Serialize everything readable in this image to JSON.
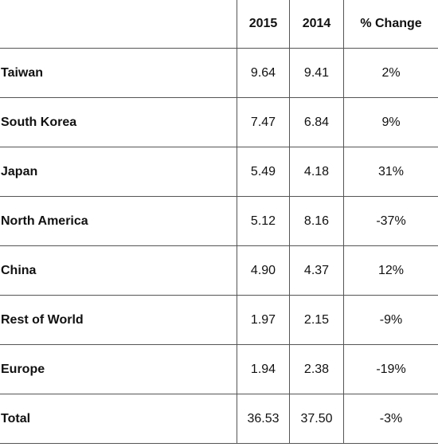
{
  "table": {
    "headers": [
      "",
      "2015",
      "2014",
      "% Change"
    ],
    "rows": [
      {
        "label": "Taiwan",
        "v2015": "9.64",
        "v2014": "9.41",
        "change": "2%"
      },
      {
        "label": "South Korea",
        "v2015": "7.47",
        "v2014": "6.84",
        "change": "9%"
      },
      {
        "label": "Japan",
        "v2015": "5.49",
        "v2014": "4.18",
        "change": "31%"
      },
      {
        "label": "North America",
        "v2015": "5.12",
        "v2014": "8.16",
        "change": "-37%"
      },
      {
        "label": "China",
        "v2015": "4.90",
        "v2014": "4.37",
        "change": "12%"
      },
      {
        "label": "Rest of World",
        "v2015": "1.97",
        "v2014": "2.15",
        "change": "-9%"
      },
      {
        "label": "Europe",
        "v2015": "1.94",
        "v2014": "2.38",
        "change": "-19%"
      },
      {
        "label": "Total",
        "v2015": "36.53",
        "v2014": "37.50",
        "change": "-3%"
      }
    ]
  },
  "chart_data": {
    "type": "table",
    "columns": [
      "",
      "2015",
      "2014",
      "% Change"
    ],
    "categories": [
      "Taiwan",
      "South Korea",
      "Japan",
      "North America",
      "China",
      "Rest of World",
      "Europe",
      "Total"
    ],
    "series": [
      {
        "name": "2015",
        "values": [
          9.64,
          7.47,
          5.49,
          5.12,
          4.9,
          1.97,
          1.94,
          36.53
        ]
      },
      {
        "name": "2014",
        "values": [
          9.41,
          6.84,
          4.18,
          8.16,
          4.37,
          2.15,
          2.38,
          37.5
        ]
      },
      {
        "name": "% Change",
        "values": [
          2,
          9,
          31,
          -37,
          12,
          -9,
          -19,
          -3
        ]
      }
    ],
    "grid": true
  }
}
